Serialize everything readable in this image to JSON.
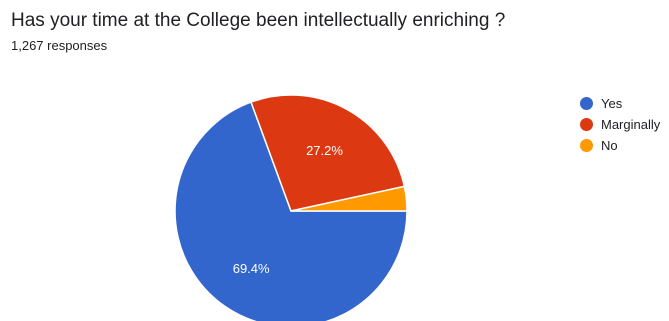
{
  "header": {
    "question": "Has your time at the College been intellectually enriching ?",
    "responses": "1,267 responses"
  },
  "chart_data": {
    "type": "pie",
    "categories": [
      "Yes",
      "Marginally",
      "No"
    ],
    "values": [
      69.4,
      27.2,
      3.4
    ],
    "data_labels": [
      "69.4%",
      "27.2%",
      ""
    ],
    "colors": [
      "#3366cc",
      "#dc3912",
      "#ff9900"
    ],
    "legend_position": "right",
    "title": "Has your time at the College been intellectually enriching ?"
  }
}
